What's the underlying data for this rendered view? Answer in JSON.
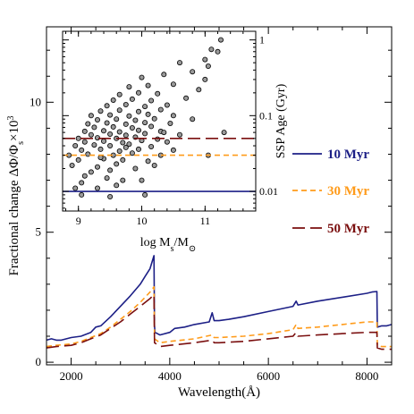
{
  "chart_data": [
    {
      "type": "line",
      "xlabel": "Wavelength(Å)",
      "ylabel": "Fractional change ΔΦ/Φ_s×10^3",
      "ylabel_parts": {
        "main": "Fractional change ΔΦ/Φ",
        "sub": "s",
        "mid": "×10",
        "sup": "3"
      },
      "xlim": [
        1500,
        8500
      ],
      "ylim": [
        -0.1,
        12.9
      ],
      "x_ticks": [
        2000,
        4000,
        6000,
        8000
      ],
      "x_tick_labels": [
        "2000",
        "4000",
        "6000",
        "8000"
      ],
      "y_ticks": [
        0,
        5,
        10
      ],
      "y_tick_labels": [
        "0",
        "5",
        "10"
      ],
      "series": [
        {
          "name": "10 Myr",
          "color": "#1c1f86",
          "style": "solid",
          "x": [
            1500,
            1600,
            1700,
            1800,
            2000,
            2200,
            2400,
            2500,
            2600,
            2800,
            3000,
            3200,
            3400,
            3500,
            3600,
            3680,
            3690,
            3700,
            3800,
            4000,
            4100,
            4300,
            4500,
            4800,
            4861,
            4900,
            5000,
            5200,
            5500,
            6000,
            6500,
            6563,
            6600,
            7000,
            7500,
            8000,
            8100,
            8200,
            8210,
            8300,
            8400,
            8500
          ],
          "y": [
            0.85,
            0.9,
            0.85,
            0.85,
            0.95,
            1.0,
            1.15,
            1.35,
            1.4,
            1.75,
            2.15,
            2.55,
            3.0,
            3.3,
            3.6,
            4.1,
            1.4,
            1.15,
            1.05,
            1.15,
            1.3,
            1.35,
            1.45,
            1.55,
            1.9,
            1.6,
            1.6,
            1.65,
            1.75,
            1.95,
            2.15,
            2.35,
            2.2,
            2.35,
            2.5,
            2.65,
            2.7,
            2.72,
            1.35,
            1.4,
            1.4,
            1.45
          ]
        },
        {
          "name": "30 Myr",
          "color": "#ff9b1a",
          "style": "dashed",
          "x": [
            1500,
            1700,
            2000,
            2200,
            2400,
            2600,
            2800,
            3000,
            3200,
            3400,
            3500,
            3600,
            3680,
            3690,
            3800,
            4000,
            4500,
            4861,
            4900,
            5000,
            5500,
            6000,
            6500,
            6563,
            6600,
            7000,
            7500,
            8000,
            8200,
            8210,
            8300,
            8500
          ],
          "y": [
            0.6,
            0.65,
            0.7,
            0.8,
            0.95,
            1.1,
            1.35,
            1.65,
            1.95,
            2.3,
            2.5,
            2.7,
            2.9,
            0.9,
            0.75,
            0.8,
            0.9,
            1.05,
            0.95,
            0.95,
            1.0,
            1.1,
            1.25,
            1.45,
            1.3,
            1.35,
            1.45,
            1.55,
            1.55,
            0.65,
            0.6,
            0.6
          ]
        },
        {
          "name": "50 Myr",
          "color": "#7a0f0f",
          "style": "long-dashed",
          "x": [
            1500,
            1700,
            2000,
            2200,
            2400,
            2600,
            2800,
            3000,
            3200,
            3400,
            3500,
            3600,
            3680,
            3690,
            3800,
            4000,
            4500,
            4861,
            4900,
            5000,
            5500,
            6000,
            6500,
            6563,
            6600,
            7000,
            7500,
            8000,
            8200,
            8210,
            8300,
            8500
          ],
          "y": [
            0.55,
            0.6,
            0.65,
            0.75,
            0.9,
            1.05,
            1.3,
            1.55,
            1.85,
            2.15,
            2.3,
            2.45,
            2.6,
            0.75,
            0.6,
            0.65,
            0.75,
            0.85,
            0.75,
            0.75,
            0.8,
            0.9,
            1.0,
            1.15,
            1.0,
            1.05,
            1.1,
            1.15,
            1.15,
            0.55,
            0.5,
            0.5
          ]
        }
      ],
      "legend_placement": "right, middle",
      "grid": false
    },
    {
      "type": "scatter",
      "xlabel": "log M_s/M_⊙",
      "xlabel_parts": {
        "main": "log M",
        "sub": "s",
        "mid": "/M",
        "sub2": "⊙"
      },
      "ylabel": "SSP Age (Gyr)",
      "xlim": [
        8.75,
        11.8
      ],
      "ylim": [
        0.0055,
        1.3
      ],
      "y_scale": "log",
      "x_ticks": [
        9,
        10,
        11
      ],
      "x_tick_labels": [
        "9",
        "10",
        "11"
      ],
      "y_ticks": [
        0.01,
        0.1,
        1
      ],
      "y_tick_labels": [
        "0.01",
        "0.1",
        "1"
      ],
      "tick_side": "right",
      "marker_color": "#9a9a9a",
      "marker_edge": "#000000",
      "points": [
        [
          8.95,
          0.011
        ],
        [
          9.05,
          0.013
        ],
        [
          9.3,
          0.011
        ],
        [
          9.6,
          0.012
        ],
        [
          9.1,
          0.016
        ],
        [
          9.45,
          0.015
        ],
        [
          9.7,
          0.014
        ],
        [
          10.0,
          0.014
        ],
        [
          9.2,
          0.018
        ],
        [
          9.5,
          0.019
        ],
        [
          8.9,
          0.022
        ],
        [
          9.3,
          0.021
        ],
        [
          9.6,
          0.023
        ],
        [
          9.9,
          0.02
        ],
        [
          10.2,
          0.022
        ],
        [
          9.0,
          0.026
        ],
        [
          9.4,
          0.027
        ],
        [
          9.7,
          0.026
        ],
        [
          10.1,
          0.025
        ],
        [
          8.85,
          0.03
        ],
        [
          9.15,
          0.031
        ],
        [
          9.55,
          0.03
        ],
        [
          9.85,
          0.032
        ],
        [
          10.3,
          0.03
        ],
        [
          9.05,
          0.035
        ],
        [
          9.35,
          0.036
        ],
        [
          9.65,
          0.034
        ],
        [
          9.95,
          0.036
        ],
        [
          10.5,
          0.035
        ],
        [
          8.95,
          0.04
        ],
        [
          9.25,
          0.041
        ],
        [
          9.5,
          0.04
        ],
        [
          9.8,
          0.042
        ],
        [
          10.15,
          0.039
        ],
        [
          9.1,
          0.045
        ],
        [
          9.4,
          0.046
        ],
        [
          9.7,
          0.044
        ],
        [
          10.0,
          0.047
        ],
        [
          10.4,
          0.045
        ],
        [
          9.0,
          0.05
        ],
        [
          9.3,
          0.051
        ],
        [
          9.6,
          0.05
        ],
        [
          9.9,
          0.052
        ],
        [
          10.25,
          0.049
        ],
        [
          9.2,
          0.056
        ],
        [
          9.5,
          0.057
        ],
        [
          9.75,
          0.055
        ],
        [
          10.05,
          0.058
        ],
        [
          10.6,
          0.056
        ],
        [
          9.1,
          0.062
        ],
        [
          9.4,
          0.063
        ],
        [
          9.65,
          0.061
        ],
        [
          9.95,
          0.064
        ],
        [
          10.3,
          0.062
        ],
        [
          9.25,
          0.07
        ],
        [
          9.55,
          0.071
        ],
        [
          9.85,
          0.069
        ],
        [
          10.15,
          0.072
        ],
        [
          9.15,
          0.078
        ],
        [
          9.45,
          0.08
        ],
        [
          9.75,
          0.077
        ],
        [
          10.05,
          0.081
        ],
        [
          10.45,
          0.079
        ],
        [
          9.3,
          0.088
        ],
        [
          9.6,
          0.09
        ],
        [
          9.9,
          0.087
        ],
        [
          10.2,
          0.091
        ],
        [
          9.2,
          0.1
        ],
        [
          9.5,
          0.102
        ],
        [
          9.8,
          0.099
        ],
        [
          10.1,
          0.104
        ],
        [
          10.5,
          0.1
        ],
        [
          9.35,
          0.115
        ],
        [
          9.65,
          0.118
        ],
        [
          9.95,
          0.113
        ],
        [
          10.3,
          0.12
        ],
        [
          9.45,
          0.135
        ],
        [
          9.75,
          0.14
        ],
        [
          10.05,
          0.132
        ],
        [
          10.4,
          0.138
        ],
        [
          9.55,
          0.16
        ],
        [
          9.85,
          0.165
        ],
        [
          10.15,
          0.158
        ],
        [
          10.7,
          0.17
        ],
        [
          9.65,
          0.19
        ],
        [
          9.95,
          0.2
        ],
        [
          10.25,
          0.195
        ],
        [
          10.9,
          0.22
        ],
        [
          9.8,
          0.24
        ],
        [
          10.1,
          0.25
        ],
        [
          10.5,
          0.26
        ],
        [
          11.0,
          0.3
        ],
        [
          10.0,
          0.32
        ],
        [
          10.35,
          0.35
        ],
        [
          10.8,
          0.38
        ],
        [
          11.05,
          0.45
        ],
        [
          10.6,
          0.5
        ],
        [
          11.0,
          0.55
        ],
        [
          11.1,
          0.75
        ],
        [
          11.2,
          0.7
        ],
        [
          11.25,
          1.0
        ],
        [
          9.05,
          0.009
        ],
        [
          9.5,
          0.0085
        ],
        [
          10.05,
          0.009
        ],
        [
          11.05,
          0.03
        ],
        [
          11.3,
          0.06
        ],
        [
          9.35,
          0.028
        ],
        [
          9.75,
          0.038
        ],
        [
          10.35,
          0.06
        ],
        [
          10.8,
          0.09
        ]
      ]
    }
  ],
  "inset_lines": [
    {
      "label": "10 Myr",
      "value": 0.01,
      "color": "#1c1f86",
      "style": "solid"
    },
    {
      "label": "30 Myr",
      "value": 0.03,
      "color": "#ff9b1a",
      "style": "dashed"
    },
    {
      "label": "50 Myr",
      "value": 0.05,
      "color": "#7a0f0f",
      "style": "long-dashed"
    }
  ]
}
